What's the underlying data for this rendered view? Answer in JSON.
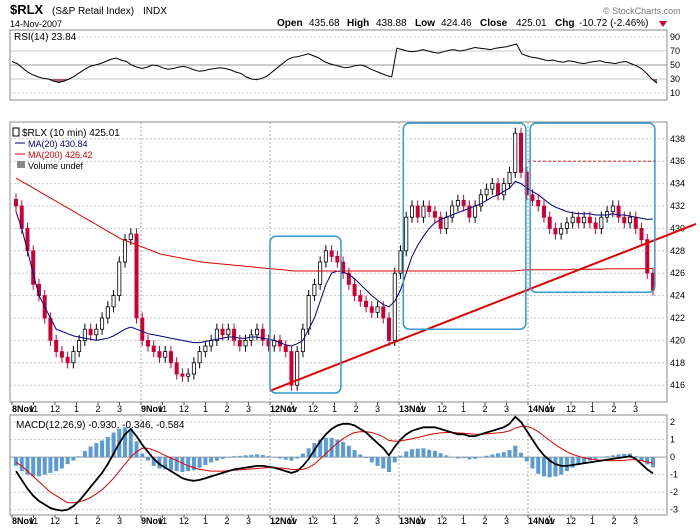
{
  "header": {
    "symbol": "$RLX",
    "name": "(S&P Retail Index)",
    "exchange": "INDX",
    "date": "14-Nov-2007",
    "open_label": "Open",
    "open": "435.68",
    "high_label": "High",
    "high": "438.88",
    "low_label": "Low",
    "low": "424.46",
    "close_label": "Close",
    "close": "425.01",
    "chg_label": "Chg",
    "chg": "-10.72 (-2.46%)",
    "watermark": "© StockCharts.com"
  },
  "colors": {
    "up": "#000000",
    "down": "#cc0033",
    "ma20": "#000080",
    "ma200": "#e00000",
    "box": "#3399cc",
    "hist": "#5b9bd5",
    "rsi_fill": "#a06070",
    "grid": "#c8c8c8"
  },
  "chart_data": [
    {
      "type": "line",
      "panel": "rsi",
      "label": "RSI(14) 23.84",
      "ylim": [
        0,
        100
      ],
      "ticks": [
        "90",
        "70",
        "50",
        "30",
        "10"
      ],
      "tick_values": [
        90,
        70,
        50,
        30,
        10
      ],
      "series": [
        {
          "name": "RSI(14)",
          "values": [
            55,
            52,
            46,
            40,
            36,
            33,
            31,
            30,
            27,
            25,
            27,
            30,
            34,
            39,
            44,
            48,
            50,
            52,
            55,
            58,
            60,
            57,
            55,
            50,
            47,
            45,
            47,
            50,
            49,
            46,
            44,
            45,
            47,
            48,
            46,
            43,
            41,
            42,
            44,
            45,
            46,
            45,
            43,
            40,
            38,
            33,
            30,
            29,
            31,
            34,
            40,
            46,
            52,
            58,
            61,
            62,
            64,
            66,
            63,
            60,
            55,
            52,
            50,
            48,
            46,
            47,
            49,
            50,
            48,
            44,
            41,
            38,
            35,
            33,
            74,
            72,
            70,
            69,
            70,
            72,
            70,
            68,
            67,
            69,
            71,
            72,
            70,
            71,
            73,
            75,
            74,
            73,
            72,
            74,
            75,
            76,
            78,
            80,
            66,
            63,
            61,
            60,
            58,
            56,
            57,
            55,
            54,
            56,
            55,
            53,
            52,
            54,
            55,
            56,
            54,
            53,
            52,
            54,
            55,
            52,
            49,
            45,
            38,
            30,
            24
          ]
        }
      ]
    },
    {
      "type": "candlestick",
      "panel": "price",
      "label": "$RLX (10 min) 425.01",
      "ylim": [
        414.5,
        439.5
      ],
      "ticks": [
        "438",
        "436",
        "434",
        "432",
        "430",
        "428",
        "426",
        "424",
        "422",
        "420",
        "418",
        "416"
      ],
      "tick_values": [
        438,
        436,
        434,
        432,
        430,
        428,
        426,
        424,
        422,
        420,
        418,
        416
      ],
      "x_ticks": [
        "8Nov",
        "11",
        "12",
        "1",
        "2",
        "3",
        "9Nov",
        "11",
        "12",
        "1",
        "2",
        "3",
        "12Nov",
        "11",
        "12",
        "1",
        "2",
        "3",
        "13Nov",
        "11",
        "12",
        "1",
        "2",
        "3",
        "14Nov",
        "11",
        "12",
        "1",
        "2",
        "3"
      ],
      "close": [
        432,
        430,
        428,
        425,
        424,
        422,
        420,
        419,
        418.5,
        418,
        419,
        420,
        421,
        420.5,
        421,
        422,
        423,
        424,
        427,
        429,
        429.5,
        422,
        420,
        419.5,
        419,
        418.5,
        419,
        418,
        417,
        416.8,
        417,
        418,
        419,
        419.5,
        420,
        421,
        420.5,
        421,
        420,
        419.5,
        420,
        420.5,
        421,
        420,
        419.5,
        420,
        419.5,
        419,
        416,
        419,
        421,
        424,
        425,
        427,
        428,
        427.5,
        427,
        426,
        425,
        424,
        423.5,
        423,
        422.5,
        423,
        422,
        420,
        426,
        428,
        431,
        432,
        431,
        432,
        431.5,
        431,
        430,
        431,
        432,
        432.5,
        432,
        431,
        432,
        433,
        433.5,
        434,
        433,
        434,
        435,
        438.5,
        435,
        433,
        432.5,
        432,
        431,
        430,
        429.5,
        430,
        430.5,
        431,
        430.5,
        431,
        430.5,
        430,
        431,
        431.5,
        432,
        431,
        430.5,
        431,
        430,
        429,
        426,
        424.5
      ],
      "series": [
        {
          "name": "MA(20) 430.84",
          "values": [
            431.5,
            430,
            428,
            426,
            424,
            423,
            422,
            421,
            420.8,
            420.6,
            420.4,
            420.3,
            420.2,
            420.1,
            420,
            420.1,
            420.2,
            420.4,
            420.7,
            421,
            421.2,
            421,
            420.8,
            420.6,
            420.5,
            420.4,
            420.3,
            420.2,
            420.1,
            420,
            419.9,
            419.8,
            419.8,
            419.9,
            420,
            420.1,
            420.2,
            420.3,
            420.3,
            420.2,
            420.2,
            420.3,
            420.3,
            420.2,
            420.1,
            420,
            419.8,
            419.6,
            419.5,
            419.7,
            420,
            421,
            422,
            423.5,
            425,
            426,
            426.2,
            426.1,
            425.9,
            425.5,
            425,
            424.5,
            424,
            423.6,
            423.2,
            423,
            423.5,
            424.5,
            426,
            427.5,
            428.5,
            429.3,
            430,
            430.5,
            430.8,
            431,
            431.2,
            431.4,
            431.6,
            431.8,
            432,
            432.2,
            432.5,
            432.8,
            433,
            433.3,
            433.6,
            434.2,
            434,
            433.6,
            433.3,
            433,
            432.6,
            432.2,
            431.9,
            431.7,
            431.5,
            431.4,
            431.3,
            431.3,
            431.3,
            431.2,
            431.2,
            431.2,
            431.3,
            431.2,
            431.2,
            431.1,
            431,
            430.9,
            430.8,
            430.84
          ]
        },
        {
          "name": "MA(200) 426.42",
          "values": [
            434.5,
            434.2,
            433.9,
            433.6,
            433.3,
            433,
            432.7,
            432.4,
            432.1,
            431.8,
            431.5,
            431.2,
            430.9,
            430.6,
            430.3,
            430,
            429.7,
            429.4,
            429.1,
            428.9,
            428.7,
            428.5,
            428.3,
            428.1,
            427.9,
            427.7,
            427.6,
            427.5,
            427.4,
            427.3,
            427.2,
            427.1,
            427,
            426.95,
            426.9,
            426.85,
            426.8,
            426.75,
            426.7,
            426.65,
            426.6,
            426.55,
            426.5,
            426.45,
            426.4,
            426.35,
            426.3,
            426.25,
            426.2,
            426.2,
            426.2,
            426.2,
            426.2,
            426.2,
            426.2,
            426.2,
            426.2,
            426.2,
            426.2,
            426.2,
            426.2,
            426.2,
            426.2,
            426.2,
            426.2,
            426.2,
            426.2,
            426.2,
            426.2,
            426.2,
            426.2,
            426.2,
            426.2,
            426.2,
            426.2,
            426.2,
            426.2,
            426.2,
            426.2,
            426.2,
            426.2,
            426.2,
            426.2,
            426.2,
            426.2,
            426.2,
            426.2,
            426.25,
            426.3,
            426.3,
            426.3,
            426.3,
            426.3,
            426.3,
            426.3,
            426.3,
            426.35,
            426.35,
            426.35,
            426.35,
            426.35,
            426.35,
            426.4,
            426.4,
            426.4,
            426.4,
            426.4,
            426.4,
            426.4,
            426.4,
            426.42
          ]
        }
      ],
      "legend": [
        "$RLX (10 min) 425.01",
        "MA(20) 430.84",
        "MA(200) 426.42",
        "Volume undef"
      ],
      "trendline": {
        "from": [
          12,
          415.5
        ],
        "to": [
          29.95,
          428.6
        ]
      },
      "boxes": [
        {
          "x0": 12.0,
          "x1": 15.3,
          "y0": 415.3,
          "y1": 429.3
        },
        {
          "x0": 18.2,
          "x1": 23.9,
          "y0": 421.0,
          "y1": 439.4
        },
        {
          "x0": 24.1,
          "x1": 29.9,
          "y0": 424.3,
          "y1": 439.4
        }
      ],
      "resistance_y": 436
    },
    {
      "type": "line",
      "panel": "macd",
      "label": "MACD(12,26,9) -0.930, -0.346, -0.584",
      "ylim": [
        -3.3,
        2.4
      ],
      "ticks": [
        "2",
        "1",
        "0",
        "-1",
        "-2",
        "-3"
      ],
      "tick_values": [
        2,
        1,
        0,
        -1,
        -2,
        -3
      ],
      "x_ticks": [
        "8Nov",
        "11",
        "12",
        "1",
        "2",
        "3",
        "9Nov",
        "11",
        "12",
        "1",
        "2",
        "3",
        "12Nov",
        "11",
        "12",
        "1",
        "2",
        "3",
        "13Nov",
        "11",
        "12",
        "1",
        "2",
        "3",
        "14Nov",
        "11",
        "12",
        "1",
        "2",
        "3"
      ],
      "series": [
        {
          "name": "MACD",
          "values": [
            -0.8,
            -1.3,
            -1.8,
            -2.2,
            -2.5,
            -2.7,
            -2.9,
            -3.0,
            -3.05,
            -3.0,
            -2.8,
            -2.5,
            -2.1,
            -1.7,
            -1.3,
            -0.9,
            -0.4,
            0.2,
            0.8,
            1.3,
            1.6,
            1.2,
            0.7,
            0.3,
            -0.1,
            -0.4,
            -0.6,
            -0.8,
            -1.0,
            -1.2,
            -1.3,
            -1.35,
            -1.3,
            -1.2,
            -1.1,
            -1.0,
            -0.9,
            -0.8,
            -0.7,
            -0.65,
            -0.6,
            -0.55,
            -0.5,
            -0.5,
            -0.55,
            -0.6,
            -0.7,
            -0.8,
            -0.9,
            -0.8,
            -0.5,
            -0.1,
            0.4,
            0.9,
            1.3,
            1.6,
            1.8,
            1.9,
            1.9,
            1.8,
            1.6,
            1.4,
            1.1,
            0.8,
            0.5,
            0.1,
            0.6,
            1.0,
            1.3,
            1.5,
            1.6,
            1.7,
            1.7,
            1.7,
            1.6,
            1.5,
            1.4,
            1.3,
            1.3,
            1.2,
            1.2,
            1.3,
            1.4,
            1.5,
            1.6,
            1.7,
            1.9,
            2.3,
            2.0,
            1.5,
            1.0,
            0.5,
            0.1,
            -0.2,
            -0.4,
            -0.5,
            -0.5,
            -0.45,
            -0.4,
            -0.35,
            -0.3,
            -0.25,
            -0.2,
            -0.15,
            -0.1,
            -0.05,
            0.0,
            0.05,
            -0.1,
            -0.4,
            -0.7,
            -0.93
          ]
        },
        {
          "name": "Signal",
          "values": [
            -0.3,
            -0.5,
            -0.8,
            -1.1,
            -1.4,
            -1.7,
            -2.0,
            -2.2,
            -2.4,
            -2.6,
            -2.6,
            -2.55,
            -2.45,
            -2.3,
            -2.1,
            -1.85,
            -1.55,
            -1.2,
            -0.8,
            -0.4,
            0.0,
            0.3,
            0.5,
            0.5,
            0.4,
            0.25,
            0.1,
            -0.05,
            -0.2,
            -0.35,
            -0.5,
            -0.6,
            -0.7,
            -0.75,
            -0.8,
            -0.8,
            -0.8,
            -0.78,
            -0.75,
            -0.72,
            -0.7,
            -0.68,
            -0.65,
            -0.62,
            -0.6,
            -0.6,
            -0.62,
            -0.65,
            -0.7,
            -0.72,
            -0.7,
            -0.6,
            -0.4,
            -0.1,
            0.2,
            0.5,
            0.8,
            1.05,
            1.25,
            1.4,
            1.45,
            1.45,
            1.4,
            1.3,
            1.15,
            0.95,
            0.9,
            0.92,
            0.98,
            1.05,
            1.12,
            1.2,
            1.28,
            1.34,
            1.38,
            1.4,
            1.4,
            1.38,
            1.36,
            1.33,
            1.3,
            1.3,
            1.32,
            1.35,
            1.38,
            1.42,
            1.5,
            1.65,
            1.75,
            1.75,
            1.65,
            1.45,
            1.2,
            0.95,
            0.7,
            0.5,
            0.3,
            0.15,
            0.05,
            -0.05,
            -0.1,
            -0.15,
            -0.18,
            -0.2,
            -0.2,
            -0.2,
            -0.18,
            -0.15,
            -0.15,
            -0.2,
            -0.28,
            -0.346
          ]
        }
      ]
    }
  ]
}
